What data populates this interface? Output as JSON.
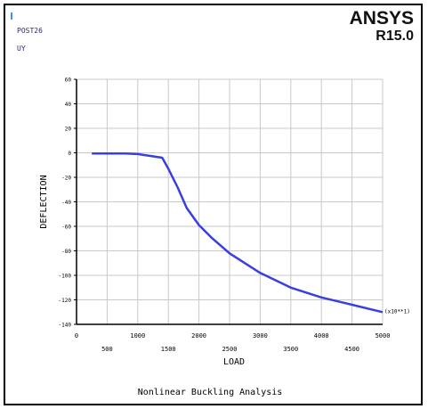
{
  "header": {
    "post_label": "POST26",
    "variable_label": "UY",
    "brand_name": "ANSYS",
    "brand_version": "R15.0"
  },
  "colors": {
    "series": "#3a3fe0",
    "grid": "#c8c8c8",
    "axis": "#000000",
    "text_dark": "#2b2b6b"
  },
  "chart_data": {
    "type": "line",
    "title": "Nonlinear Buckling Analysis",
    "xlabel": "LOAD",
    "ylabel": "DEFLECTION",
    "x_multiplier_label": "(x10**1)",
    "xlim": [
      0,
      5000
    ],
    "ylim": [
      -140,
      60
    ],
    "x_ticks": [
      0,
      500,
      1000,
      1500,
      2000,
      2500,
      3000,
      3500,
      4000,
      4500,
      5000
    ],
    "y_ticks": [
      60,
      40,
      20,
      0,
      -20,
      -40,
      -60,
      -80,
      -100,
      -120,
      -140
    ],
    "grid": true,
    "series": [
      {
        "x": [
          250,
          800,
          1000,
          1400,
          1500,
          1650,
          1800,
          2000,
          2200,
          2500,
          3000,
          3500,
          4000,
          4500,
          5000
        ],
        "y": [
          -0.5,
          -0.5,
          -1.0,
          -4.0,
          -13,
          -28,
          -45,
          -59,
          -69,
          -82,
          -98,
          -110,
          -118,
          -124,
          -130
        ]
      }
    ]
  }
}
